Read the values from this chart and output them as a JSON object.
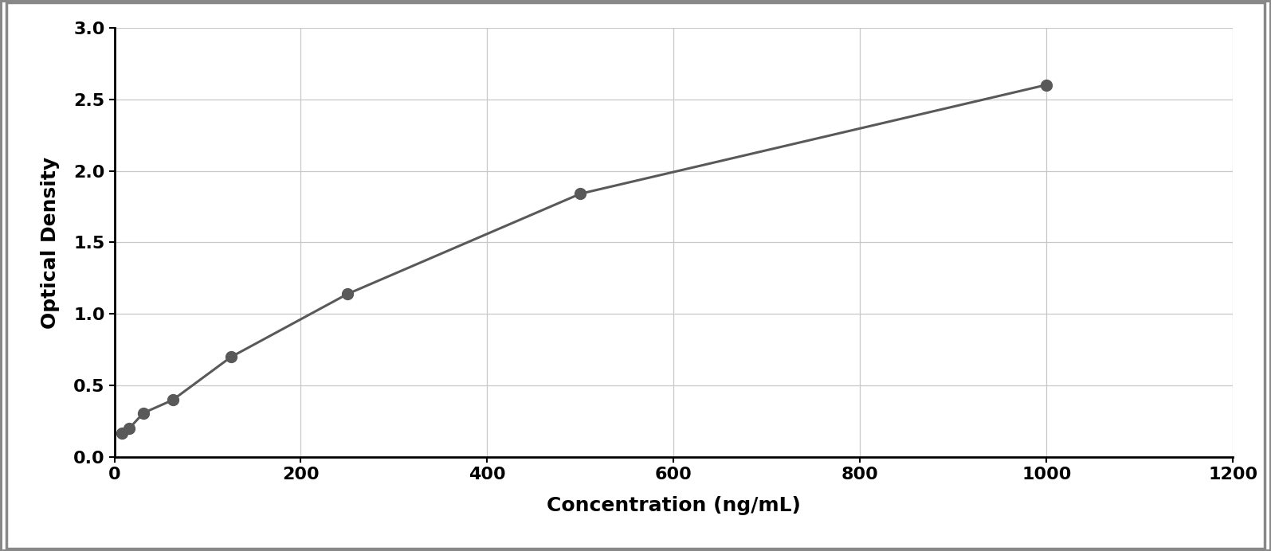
{
  "x_data": [
    7.8,
    15.6,
    31.25,
    62.5,
    125,
    250,
    500,
    1000
  ],
  "y_data": [
    0.17,
    0.2,
    0.31,
    0.4,
    0.7,
    1.14,
    1.84,
    2.6
  ],
  "xlabel": "Concentration (ng/mL)",
  "ylabel": "Optical Density",
  "xlim": [
    0,
    1200
  ],
  "ylim": [
    0,
    3
  ],
  "xticks": [
    0,
    200,
    400,
    600,
    800,
    1000,
    1200
  ],
  "yticks": [
    0,
    0.5,
    1.0,
    1.5,
    2.0,
    2.5,
    3.0
  ],
  "data_color": "#595959",
  "line_color": "#595959",
  "background_color": "#ffffff",
  "plot_bg_color": "#ffffff",
  "grid_color": "#c8c8c8",
  "xlabel_fontsize": 18,
  "ylabel_fontsize": 18,
  "tick_fontsize": 16,
  "marker_size": 10,
  "line_width": 2.2,
  "curve_xmax": 1050,
  "outer_border_color": "#888888",
  "outer_border_lw": 2.5
}
